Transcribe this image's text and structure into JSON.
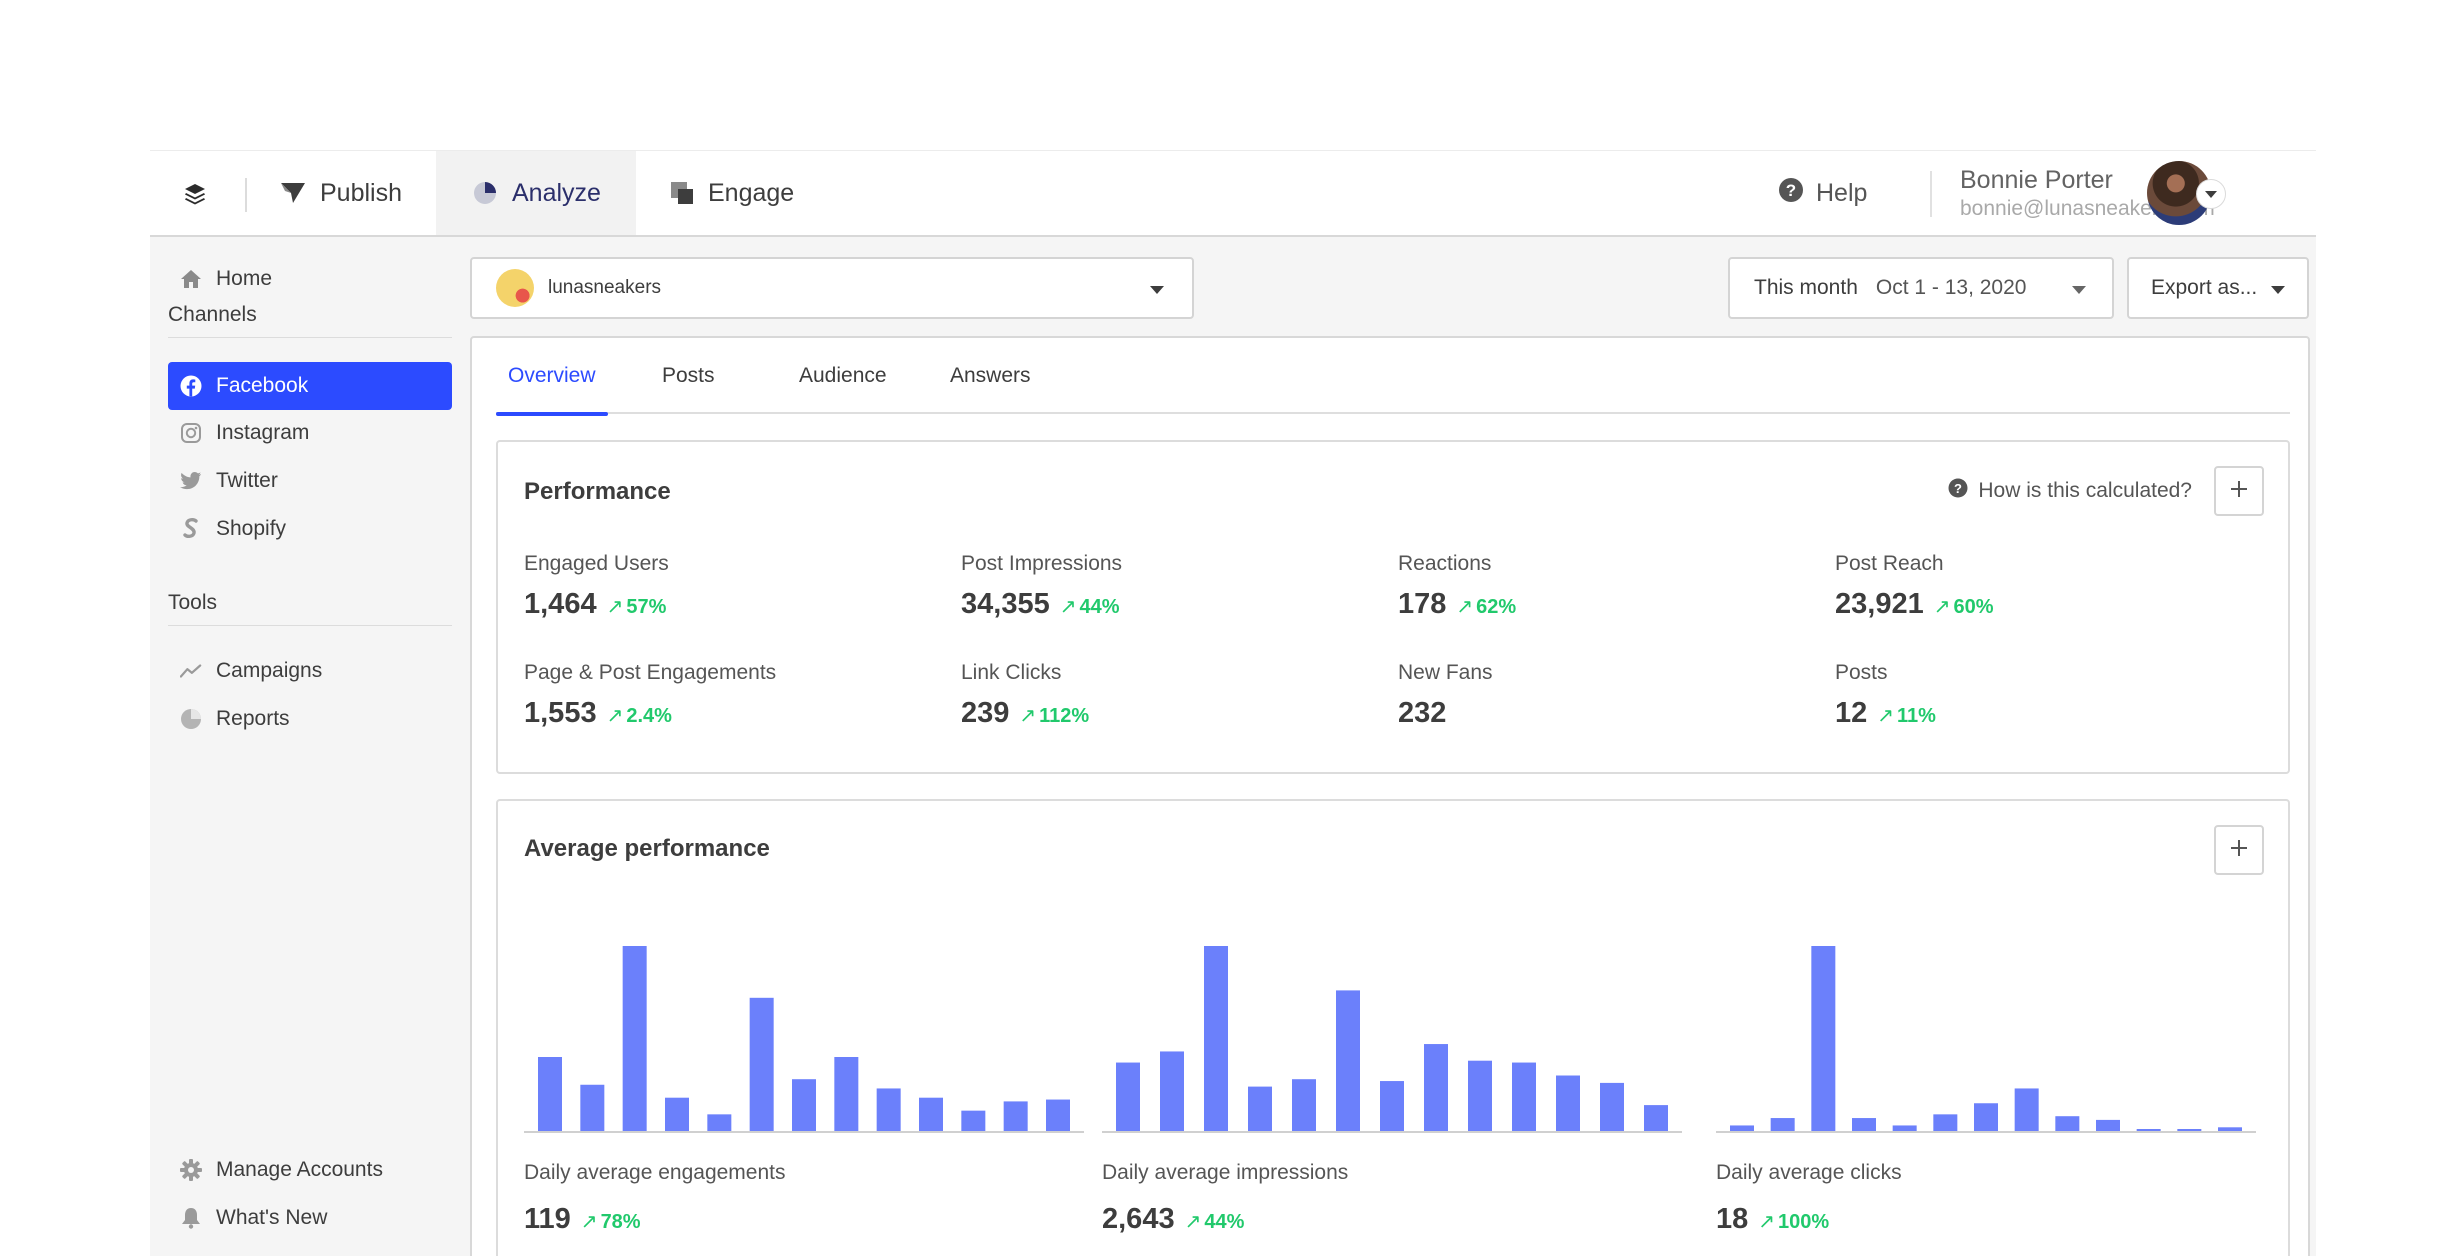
{
  "topnav": {
    "tabs": [
      {
        "label": "Publish"
      },
      {
        "label": "Analyze"
      },
      {
        "label": "Engage"
      }
    ],
    "help_label": "Help",
    "user": {
      "name": "Bonnie Porter",
      "email": "bonnie@lunasneakers.com"
    }
  },
  "sidebar": {
    "home": "Home",
    "channels_heading": "Channels",
    "channels": [
      {
        "label": "Facebook",
        "icon": "facebook-icon"
      },
      {
        "label": "Instagram",
        "icon": "instagram-icon"
      },
      {
        "label": "Twitter",
        "icon": "twitter-icon"
      },
      {
        "label": "Shopify",
        "icon": "shopify-icon"
      }
    ],
    "tools_heading": "Tools",
    "tools": [
      {
        "label": "Campaigns",
        "icon": "campaigns-icon"
      },
      {
        "label": "Reports",
        "icon": "reports-icon"
      }
    ],
    "bottom": [
      {
        "label": "Manage Accounts",
        "icon": "gear-icon"
      },
      {
        "label": "What's New",
        "icon": "bell-icon"
      }
    ]
  },
  "toolbar": {
    "account": "lunasneakers",
    "date_preset": "This month",
    "date_range": "Oct 1 - 13, 2020",
    "export_label": "Export as..."
  },
  "tabs": [
    "Overview",
    "Posts",
    "Audience",
    "Answers"
  ],
  "performance": {
    "title": "Performance",
    "how_calculated": "How is this calculated?",
    "metrics": [
      {
        "label": "Engaged Users",
        "value": "1,464",
        "change": "57%"
      },
      {
        "label": "Post Impressions",
        "value": "34,355",
        "change": "44%"
      },
      {
        "label": "Reactions",
        "value": "178",
        "change": "62%"
      },
      {
        "label": "Post Reach",
        "value": "23,921",
        "change": "60%"
      },
      {
        "label": "Page & Post Engagements",
        "value": "1,553",
        "change": "2.4%"
      },
      {
        "label": "Link Clicks",
        "value": "239",
        "change": "112%"
      },
      {
        "label": "New Fans",
        "value": "232",
        "change": ""
      },
      {
        "label": "Posts",
        "value": "12",
        "change": "11%"
      }
    ]
  },
  "average": {
    "title": "Average performance",
    "charts": [
      {
        "label": "Daily average engagements",
        "value": "119",
        "change": "78%"
      },
      {
        "label": "Daily average impressions",
        "value": "2,643",
        "change": "44%"
      },
      {
        "label": "Daily average clicks",
        "value": "18",
        "change": "100%"
      }
    ]
  },
  "colors": {
    "accent": "#2c4bff",
    "bar": "#6b80fb",
    "positive": "#21c96c"
  },
  "chart_data": [
    {
      "type": "bar",
      "values": [
        40,
        25,
        100,
        18,
        9,
        72,
        28,
        40,
        23,
        18,
        11,
        16,
        17
      ]
    },
    {
      "type": "bar",
      "values": [
        37,
        43,
        100,
        24,
        28,
        76,
        27,
        47,
        38,
        37,
        30,
        26,
        14
      ]
    },
    {
      "type": "bar",
      "values": [
        3,
        7,
        100,
        7,
        3,
        9,
        15,
        23,
        8,
        6,
        1,
        0,
        2
      ]
    }
  ]
}
